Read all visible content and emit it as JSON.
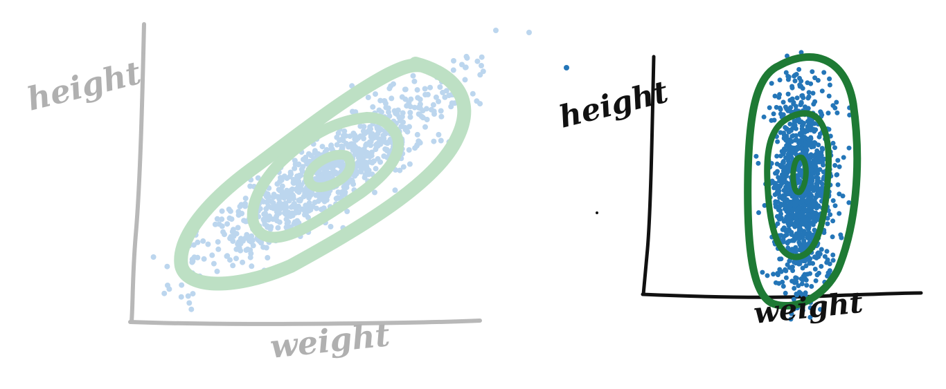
{
  "colors": {
    "faded_axis": "#b8b8b8",
    "faded_points": "#bcd6ee",
    "faded_contour": "#bde0c4",
    "strong_axis": "#111111",
    "strong_points": "#2476b8",
    "strong_contour": "#1e7a34"
  },
  "chart_data": [
    {
      "type": "scatter",
      "style": "faded sketch",
      "xlabel": "weight",
      "ylabel": "height",
      "grid": false,
      "legend": "none",
      "overlay": "density contours (3 levels)",
      "points": []
    },
    {
      "type": "scatter",
      "style": "bold sketch",
      "xlabel": "weight",
      "ylabel": "height",
      "grid": false,
      "legend": "none",
      "overlay": "density contours (3 levels)",
      "points": []
    }
  ]
}
